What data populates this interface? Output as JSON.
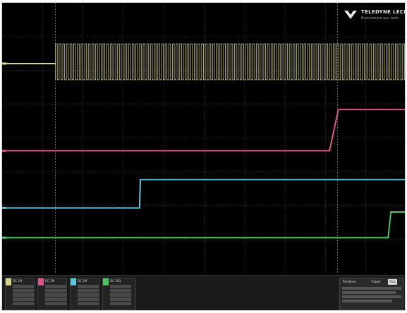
{
  "colors": {
    "background": "#000000",
    "grid": "#2e2e2e",
    "ch1": "#d6d68a",
    "ch2": "#e0558a",
    "ch3": "#55c9de",
    "ch4": "#46c862",
    "cursor": "#bdbdbd"
  },
  "brand": {
    "name": "TELEDYNE LECROY",
    "tagline": "Everywhere you look"
  },
  "traces": [
    {
      "name": "ch1-trace",
      "color_key": "ch1",
      "kind": "clock",
      "low": 0.225,
      "high_top": 0.152,
      "high_bottom": 0.285,
      "start": 0.132,
      "end": 1.0,
      "periods": 96
    },
    {
      "name": "ch2-trace",
      "color_key": "ch2",
      "kind": "step",
      "points": [
        [
          0.0,
          0.548
        ],
        [
          0.81,
          0.548
        ],
        [
          0.832,
          0.395
        ],
        [
          1.0,
          0.395
        ]
      ]
    },
    {
      "name": "ch3-trace",
      "color_key": "ch3",
      "kind": "step",
      "points": [
        [
          0.0,
          0.76
        ],
        [
          0.34,
          0.76
        ],
        [
          0.342,
          0.655
        ],
        [
          1.0,
          0.655
        ]
      ]
    },
    {
      "name": "ch4-trace",
      "color_key": "ch4",
      "kind": "step",
      "points": [
        [
          0.0,
          0.87
        ],
        [
          0.955,
          0.87
        ],
        [
          0.962,
          0.775
        ],
        [
          1.0,
          0.775
        ]
      ]
    }
  ],
  "cursors": [
    0.132,
    0.83
  ],
  "channels": [
    {
      "id": "C1",
      "color_key": "ch1",
      "label": "DC 1M"
    },
    {
      "id": "C2",
      "color_key": "ch2",
      "label": "DC 1M"
    },
    {
      "id": "C3",
      "color_key": "ch3",
      "label": "DC 1M"
    },
    {
      "id": "C4",
      "color_key": "ch4",
      "label": "DC 50Ω"
    }
  ],
  "timebase": {
    "title": "Timebase",
    "trigger": "Trigger",
    "mode_label": "Stop"
  }
}
